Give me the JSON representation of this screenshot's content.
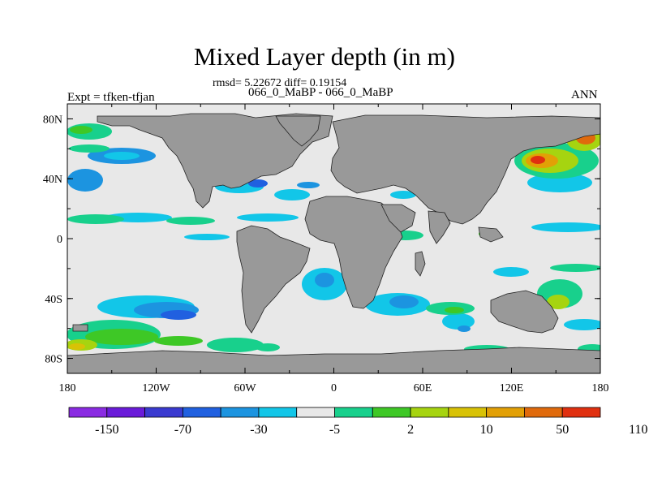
{
  "header": {
    "title": "Mixed Layer depth (in m)",
    "stats": "rmsd= 5.22672 diff= 0.19154",
    "cases": "066_0_MaBP - 066_0_MaBP",
    "expt": "Expt = tfken-tfjan",
    "season": "ANN"
  },
  "map": {
    "lon_ticks": [
      "180",
      "120W",
      "60W",
      "0",
      "60E",
      "120E",
      "180"
    ],
    "lat_ticks": [
      "80N",
      "40N",
      "0",
      "40S",
      "80S"
    ],
    "lon_range": [
      -180,
      180
    ],
    "lat_range": [
      -90,
      90
    ],
    "colors": {
      "land": "#999999",
      "ocean_neutral": "#e8e8e8"
    }
  },
  "colorbar": {
    "labels": [
      "-150",
      "-70",
      "-30",
      "-5",
      "2",
      "10",
      "50",
      "110"
    ],
    "colors": [
      "#8a2be2",
      "#6a1bd9",
      "#3a3ad0",
      "#2060e0",
      "#1c94e0",
      "#12c6e8",
      "#e8e8e8",
      "#18d08c",
      "#3ec826",
      "#a6d410",
      "#d8c206",
      "#e2a006",
      "#e06a0c",
      "#e03010"
    ]
  }
}
